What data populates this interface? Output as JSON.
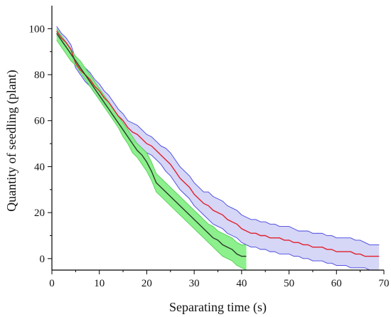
{
  "chart_data": {
    "type": "line",
    "title": "",
    "xlabel": "Separating time (s)",
    "ylabel": "Quantity of seedling (plant)",
    "xlim": [
      0,
      70
    ],
    "ylim": [
      -5,
      110
    ],
    "xticks": [
      0,
      10,
      20,
      30,
      40,
      50,
      60,
      70
    ],
    "yticks": [
      0,
      20,
      40,
      60,
      80,
      100
    ],
    "xtick_labels": [
      "0",
      "10",
      "20",
      "30",
      "40",
      "50",
      "60",
      "70"
    ],
    "ytick_labels": [
      "0",
      "20",
      "40",
      "60",
      "80",
      "100"
    ],
    "grid": false,
    "legend": "none",
    "series": [
      {
        "color": "#e0202a",
        "band_color": "#c8c8f4",
        "band_edge_color": "#4444dd",
        "x": [
          1,
          2,
          3,
          4,
          5,
          6,
          7,
          8,
          9,
          10,
          11,
          12,
          13,
          14,
          15,
          16,
          17,
          18,
          19,
          20,
          21,
          22,
          23,
          24,
          25,
          26,
          27,
          28,
          29,
          30,
          31,
          32,
          33,
          34,
          35,
          36,
          37,
          38,
          39,
          40,
          41,
          42,
          43,
          44,
          45,
          46,
          47,
          48,
          49,
          50,
          51,
          52,
          53,
          54,
          55,
          56,
          57,
          58,
          59,
          60,
          61,
          62,
          63,
          64,
          65,
          66,
          67,
          68,
          69
        ],
        "y": [
          99,
          96,
          94,
          91,
          85,
          82,
          80,
          78,
          75,
          73,
          70,
          68,
          65,
          62,
          60,
          57,
          55,
          54,
          52,
          50,
          49,
          47,
          45,
          43,
          41,
          38,
          35,
          33,
          31,
          28,
          26,
          24,
          23,
          21,
          20,
          19,
          17,
          16,
          15,
          13,
          12,
          11,
          11,
          10,
          10,
          9,
          9,
          9,
          8,
          8,
          7,
          7,
          6,
          6,
          5,
          5,
          5,
          4,
          4,
          3,
          3,
          3,
          3,
          2,
          2,
          1,
          1,
          1,
          1
        ],
        "lower": [
          97,
          94,
          92,
          89,
          83,
          80,
          77,
          75,
          72,
          70,
          67,
          65,
          62,
          59,
          57,
          54,
          51,
          50,
          48,
          46,
          45,
          43,
          41,
          38,
          36,
          33,
          30,
          28,
          26,
          23,
          21,
          19,
          17,
          15,
          14,
          13,
          11,
          10,
          9,
          7,
          6,
          5,
          5,
          4,
          4,
          3,
          3,
          2,
          2,
          2,
          1,
          1,
          0,
          0,
          -1,
          -1,
          -1,
          -2,
          -2,
          -3,
          -3,
          -3,
          -4,
          -4,
          -4,
          -4,
          -5,
          -5,
          -5
        ],
        "upper": [
          101,
          98,
          96,
          93,
          87,
          84,
          83,
          81,
          78,
          76,
          73,
          71,
          68,
          65,
          63,
          60,
          59,
          58,
          56,
          54,
          53,
          51,
          49,
          48,
          46,
          43,
          40,
          38,
          36,
          33,
          31,
          29,
          29,
          27,
          26,
          25,
          23,
          22,
          21,
          19,
          18,
          17,
          17,
          16,
          16,
          15,
          15,
          14,
          14,
          14,
          13,
          12,
          12,
          12,
          11,
          11,
          11,
          10,
          10,
          9,
          9,
          9,
          9,
          8,
          8,
          7,
          6,
          6,
          6
        ]
      },
      {
        "color": "#2a3a2a",
        "band_color": "#80ee80",
        "band_edge_color": "#55cc55",
        "x": [
          1,
          2,
          3,
          4,
          5,
          6,
          7,
          8,
          9,
          10,
          11,
          12,
          13,
          14,
          15,
          16,
          17,
          18,
          19,
          20,
          21,
          22,
          23,
          24,
          25,
          26,
          27,
          28,
          29,
          30,
          31,
          32,
          33,
          34,
          35,
          36,
          37,
          38,
          39,
          40,
          41
        ],
        "y": [
          98,
          95,
          92,
          89,
          86,
          83,
          80,
          77,
          74,
          71,
          68,
          65,
          62,
          59,
          56,
          53,
          50,
          47,
          45,
          42,
          38,
          33,
          31,
          29,
          27,
          25,
          23,
          21,
          19,
          17,
          15,
          13,
          11,
          9,
          8,
          6,
          5,
          4,
          2,
          1,
          1
        ],
        "lower": [
          95,
          92,
          89,
          86,
          84,
          81,
          78,
          75,
          72,
          69,
          66,
          63,
          60,
          57,
          53,
          50,
          46,
          44,
          41,
          38,
          34,
          29,
          27,
          25,
          23,
          21,
          19,
          17,
          15,
          13,
          11,
          9,
          7,
          5,
          3,
          1,
          0,
          -1,
          -3,
          -4,
          -5
        ],
        "upper": [
          100,
          97,
          94,
          91,
          88,
          86,
          83,
          80,
          77,
          74,
          71,
          68,
          65,
          62,
          59,
          56,
          53,
          50,
          48,
          46,
          42,
          37,
          35,
          33,
          31,
          29,
          27,
          25,
          23,
          21,
          19,
          17,
          15,
          14,
          12,
          11,
          10,
          9,
          7,
          6,
          6
        ]
      }
    ]
  }
}
